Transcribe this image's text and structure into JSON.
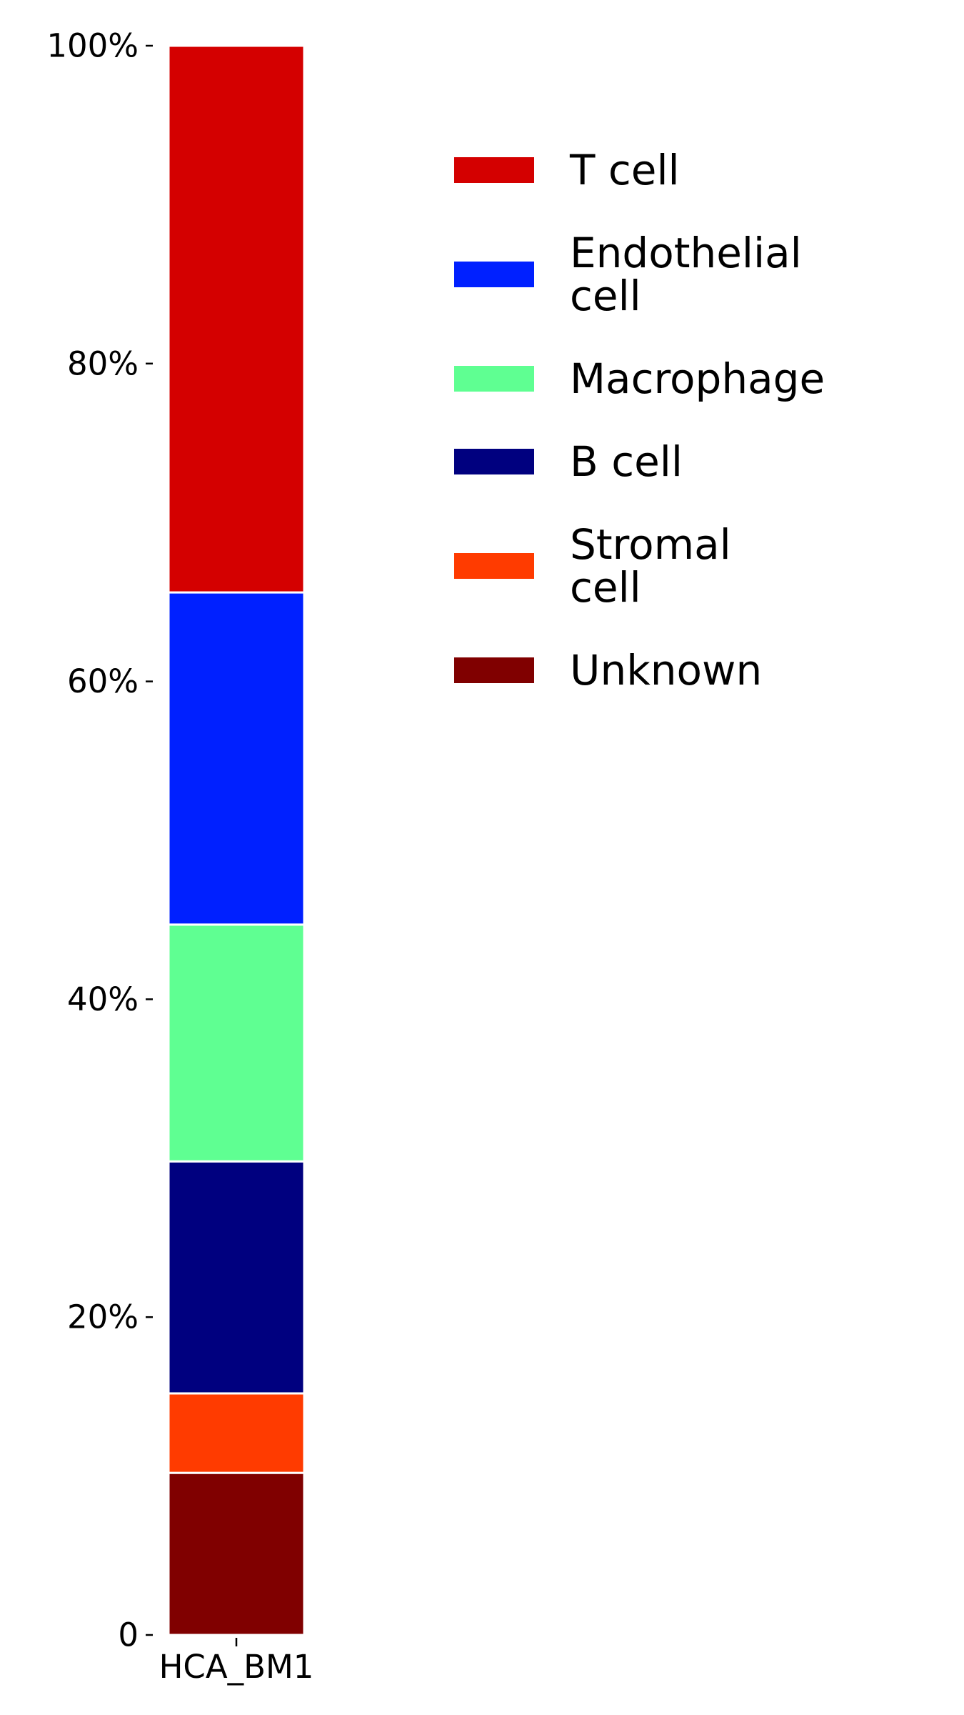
{
  "chart_data": {
    "type": "bar",
    "stacked": true,
    "categories": [
      "HCA_BM1"
    ],
    "y_tick_labels": [
      "0",
      "20%",
      "40%",
      "60%",
      "80%",
      "100%"
    ],
    "y_ticks": [
      0,
      20,
      40,
      60,
      80,
      100
    ],
    "ylim": [
      0,
      100
    ],
    "grid": false,
    "legend_position": "right",
    "series": [
      {
        "name": "Unknown",
        "values": [
          10.2
        ],
        "color": "#800000",
        "legend_lines": [
          "Unknown"
        ]
      },
      {
        "name": "Stromal cell",
        "values": [
          5.0
        ],
        "color": "#ff3b00",
        "legend_lines": [
          "Stromal",
          "cell"
        ]
      },
      {
        "name": "B cell",
        "values": [
          14.6
        ],
        "color": "#00007f",
        "legend_lines": [
          "B cell"
        ]
      },
      {
        "name": "Macrophage",
        "values": [
          14.9
        ],
        "color": "#5fff92",
        "legend_lines": [
          "Macrophage"
        ]
      },
      {
        "name": "Endothelial cell",
        "values": [
          20.9
        ],
        "color": "#0020ff",
        "legend_lines": [
          "Endothelial",
          "cell"
        ]
      },
      {
        "name": "T cell",
        "values": [
          34.4
        ],
        "color": "#d40000",
        "legend_lines": [
          "T cell"
        ]
      }
    ],
    "legend_order": [
      "T cell",
      "Endothelial cell",
      "Macrophage",
      "B cell",
      "Stromal cell",
      "Unknown"
    ]
  }
}
